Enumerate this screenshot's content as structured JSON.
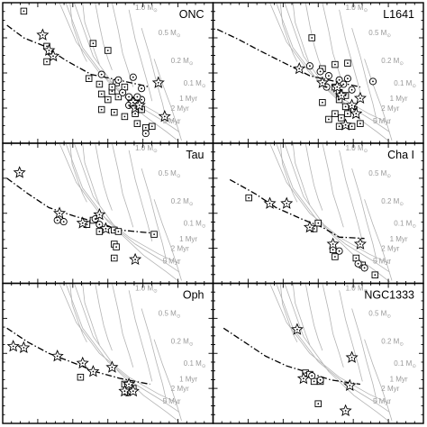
{
  "chart_data": {
    "type": "scatter",
    "panels": [
      {
        "name": "ONC",
        "mass_track_labels": [
          "1.0 M",
          "0.5 M",
          "0.2 M",
          "0.1 M"
        ],
        "mass_track_sub": "⊙",
        "isochrone_labels": [
          "1 Myr",
          "2 Myr",
          "5 Myr"
        ],
        "fit": [
          [
            0.02,
            0.16
          ],
          [
            0.1,
            0.25
          ],
          [
            0.2,
            0.31
          ],
          [
            0.3,
            0.41
          ],
          [
            0.42,
            0.51
          ],
          [
            0.55,
            0.55
          ],
          [
            0.7,
            0.6
          ]
        ],
        "squares": [
          [
            0.1,
            0.06
          ],
          [
            0.21,
            0.31
          ],
          [
            0.21,
            0.42
          ],
          [
            0.43,
            0.29
          ],
          [
            0.5,
            0.34
          ],
          [
            0.41,
            0.54
          ],
          [
            0.46,
            0.58
          ],
          [
            0.47,
            0.65
          ],
          [
            0.5,
            0.69
          ],
          [
            0.52,
            0.63
          ],
          [
            0.55,
            0.67
          ],
          [
            0.58,
            0.6
          ],
          [
            0.53,
            0.78
          ],
          [
            0.58,
            0.81
          ],
          [
            0.63,
            0.79
          ],
          [
            0.66,
            0.76
          ],
          [
            0.68,
            0.89
          ],
          [
            0.71,
            0.88
          ],
          [
            0.64,
            0.86
          ],
          [
            0.47,
            0.76
          ],
          [
            0.54,
            0.57
          ],
          [
            0.52,
            0.6
          ]
        ],
        "circles": [
          [
            0.47,
            0.51
          ],
          [
            0.55,
            0.55
          ],
          [
            0.57,
            0.64
          ],
          [
            0.6,
            0.67
          ],
          [
            0.6,
            0.73
          ],
          [
            0.66,
            0.61
          ],
          [
            0.62,
            0.53
          ],
          [
            0.66,
            0.69
          ],
          [
            0.68,
            0.93
          ],
          [
            0.64,
            0.67
          ]
        ],
        "stars": [
          [
            0.19,
            0.23
          ],
          [
            0.22,
            0.34
          ],
          [
            0.24,
            0.38
          ],
          [
            0.63,
            0.75
          ],
          [
            0.74,
            0.57
          ],
          [
            0.77,
            0.81
          ],
          [
            0.62,
            0.71
          ],
          [
            0.65,
            0.73
          ]
        ]
      },
      {
        "name": "L1641",
        "mass_track_labels": [
          "1.0 M",
          "0.5 M",
          "0.2 M",
          "0.1 M"
        ],
        "mass_track_sub": "⊙",
        "isochrone_labels": [
          "1 Myr",
          "2 Myr",
          "5 Myr"
        ],
        "fit": [
          [
            0.02,
            0.19
          ],
          [
            0.12,
            0.26
          ],
          [
            0.22,
            0.34
          ],
          [
            0.34,
            0.43
          ],
          [
            0.46,
            0.52
          ],
          [
            0.58,
            0.56
          ],
          [
            0.7,
            0.6
          ]
        ],
        "squares": [
          [
            0.47,
            0.25
          ],
          [
            0.58,
            0.44
          ],
          [
            0.52,
            0.47
          ],
          [
            0.64,
            0.43
          ],
          [
            0.58,
            0.6
          ],
          [
            0.6,
            0.64
          ],
          [
            0.63,
            0.66
          ],
          [
            0.6,
            0.69
          ],
          [
            0.63,
            0.74
          ],
          [
            0.58,
            0.79
          ],
          [
            0.64,
            0.79
          ],
          [
            0.55,
            0.83
          ],
          [
            0.61,
            0.82
          ],
          [
            0.66,
            0.88
          ],
          [
            0.7,
            0.86
          ],
          [
            0.67,
            0.76
          ],
          [
            0.6,
            0.88
          ],
          [
            0.52,
            0.71
          ]
        ],
        "circles": [
          [
            0.46,
            0.45
          ],
          [
            0.51,
            0.49
          ],
          [
            0.55,
            0.52
          ],
          [
            0.6,
            0.55
          ],
          [
            0.62,
            0.58
          ],
          [
            0.66,
            0.62
          ],
          [
            0.76,
            0.56
          ],
          [
            0.54,
            0.6
          ],
          [
            0.64,
            0.54
          ]
        ],
        "stars": [
          [
            0.41,
            0.47
          ],
          [
            0.52,
            0.57
          ],
          [
            0.59,
            0.6
          ],
          [
            0.61,
            0.66
          ],
          [
            0.66,
            0.73
          ],
          [
            0.7,
            0.68
          ],
          [
            0.63,
            0.87
          ],
          [
            0.68,
            0.79
          ]
        ]
      },
      {
        "name": "Tau",
        "mass_track_labels": [
          "1.0 M",
          "0.5 M",
          "0.2 M",
          "0.1 M"
        ],
        "mass_track_sub": "⊙",
        "isochrone_labels": [
          "1 Myr",
          "2 Myr",
          "5 Myr"
        ],
        "fit": [
          [
            0.02,
            0.25
          ],
          [
            0.12,
            0.36
          ],
          [
            0.22,
            0.46
          ],
          [
            0.34,
            0.52
          ],
          [
            0.46,
            0.57
          ],
          [
            0.56,
            0.62
          ],
          [
            0.7,
            0.64
          ]
        ],
        "squares": [
          [
            0.4,
            0.58
          ],
          [
            0.43,
            0.55
          ],
          [
            0.53,
            0.62
          ],
          [
            0.55,
            0.63
          ],
          [
            0.53,
            0.72
          ],
          [
            0.54,
            0.74
          ],
          [
            0.53,
            0.82
          ],
          [
            0.72,
            0.65
          ],
          [
            0.46,
            0.63
          ]
        ],
        "circles": [
          [
            0.26,
            0.55
          ],
          [
            0.29,
            0.56
          ],
          [
            0.46,
            0.58
          ],
          [
            0.44,
            0.54
          ]
        ],
        "stars": [
          [
            0.08,
            0.21
          ],
          [
            0.27,
            0.5
          ],
          [
            0.38,
            0.57
          ],
          [
            0.46,
            0.51
          ],
          [
            0.49,
            0.61
          ],
          [
            0.63,
            0.83
          ]
        ]
      },
      {
        "name": "Cha I",
        "mass_track_labels": [
          "1.0 M",
          "0.5 M",
          "0.2 M",
          "0.1 M"
        ],
        "mass_track_sub": "⊙",
        "isochrone_labels": [
          "1 Myr",
          "2 Myr",
          "5 Myr"
        ],
        "fit": [
          [
            0.08,
            0.26
          ],
          [
            0.2,
            0.36
          ],
          [
            0.3,
            0.46
          ],
          [
            0.42,
            0.54
          ],
          [
            0.52,
            0.6
          ],
          [
            0.6,
            0.67
          ],
          [
            0.72,
            0.68
          ]
        ],
        "squares": [
          [
            0.17,
            0.39
          ],
          [
            0.48,
            0.61
          ],
          [
            0.57,
            0.76
          ],
          [
            0.58,
            0.81
          ],
          [
            0.68,
            0.82
          ],
          [
            0.71,
            0.87
          ],
          [
            0.77,
            0.94
          ],
          [
            0.5,
            0.57
          ]
        ],
        "circles": [
          [
            0.6,
            0.77
          ],
          [
            0.69,
            0.86
          ],
          [
            0.72,
            0.89
          ]
        ],
        "stars": [
          [
            0.27,
            0.43
          ],
          [
            0.35,
            0.43
          ],
          [
            0.46,
            0.6
          ],
          [
            0.57,
            0.72
          ],
          [
            0.7,
            0.72
          ]
        ]
      },
      {
        "name": "Oph",
        "mass_track_labels": [
          "1.0 M",
          "0.5 M",
          "0.2 M",
          "0.1 M"
        ],
        "mass_track_sub": "⊙",
        "isochrone_labels": [
          "1 Myr",
          "2 Myr",
          "5 Myr"
        ],
        "fit": [
          [
            0.02,
            0.32
          ],
          [
            0.12,
            0.42
          ],
          [
            0.22,
            0.5
          ],
          [
            0.34,
            0.57
          ],
          [
            0.44,
            0.63
          ],
          [
            0.56,
            0.68
          ],
          [
            0.7,
            0.72
          ]
        ],
        "squares": [
          [
            0.37,
            0.67
          ],
          [
            0.58,
            0.72
          ],
          [
            0.6,
            0.76
          ],
          [
            0.62,
            0.75
          ]
        ],
        "circles": [
          [
            0.59,
            0.78
          ],
          [
            0.61,
            0.77
          ]
        ],
        "stars": [
          [
            0.05,
            0.45
          ],
          [
            0.1,
            0.46
          ],
          [
            0.26,
            0.52
          ],
          [
            0.38,
            0.57
          ],
          [
            0.43,
            0.63
          ],
          [
            0.52,
            0.6
          ],
          [
            0.6,
            0.72
          ],
          [
            0.62,
            0.77
          ],
          [
            0.58,
            0.77
          ]
        ]
      },
      {
        "name": "NGC1333",
        "mass_track_labels": [
          "1.0 M",
          "0.5 M",
          "0.2 M",
          "0.1 M"
        ],
        "mass_track_sub": "⊙",
        "isochrone_labels": [
          "1 Myr",
          "2 Myr",
          "5 Myr"
        ],
        "fit": [
          [
            0.05,
            0.32
          ],
          [
            0.15,
            0.42
          ],
          [
            0.25,
            0.52
          ],
          [
            0.35,
            0.59
          ],
          [
            0.46,
            0.64
          ],
          [
            0.56,
            0.69
          ],
          [
            0.7,
            0.72
          ]
        ],
        "squares": [
          [
            0.44,
            0.64
          ],
          [
            0.46,
            0.65
          ],
          [
            0.48,
            0.7
          ],
          [
            0.51,
            0.7
          ],
          [
            0.5,
            0.86
          ]
        ],
        "circles": [
          [
            0.47,
            0.66
          ],
          [
            0.51,
            0.69
          ]
        ],
        "stars": [
          [
            0.4,
            0.33
          ],
          [
            0.43,
            0.68
          ],
          [
            0.65,
            0.73
          ],
          [
            0.63,
            0.91
          ],
          [
            0.66,
            0.53
          ]
        ]
      }
    ]
  }
}
